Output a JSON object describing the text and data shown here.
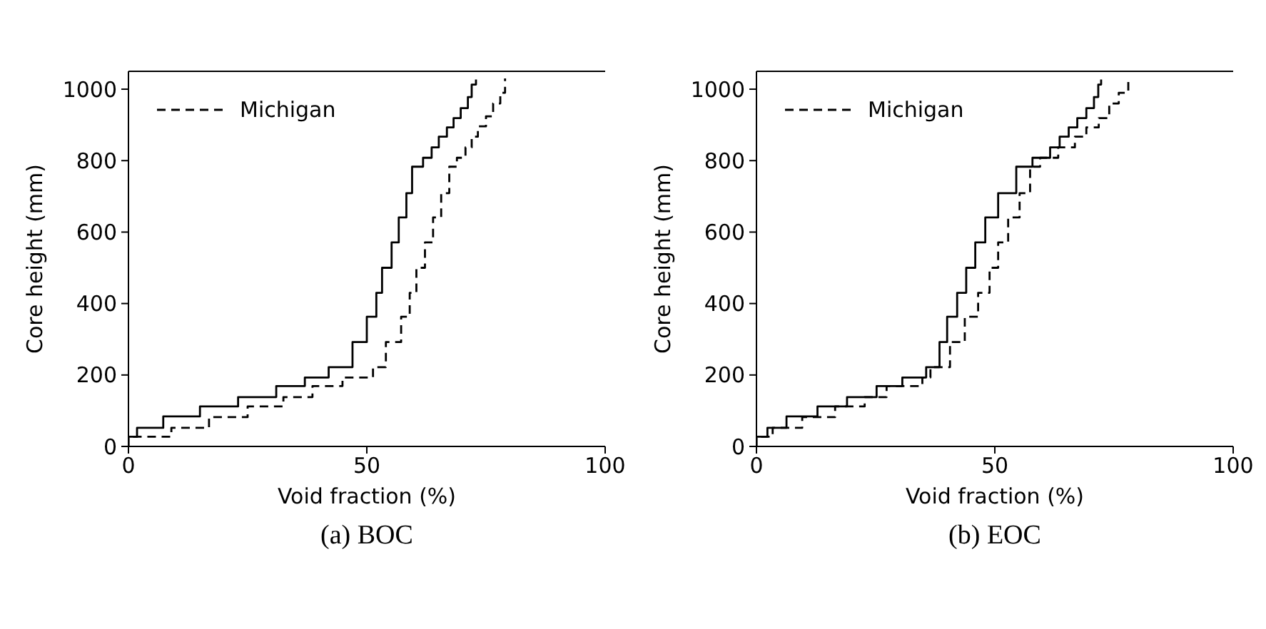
{
  "chart_data": [
    {
      "type": "step",
      "title": "(a) BOC",
      "xlabel": "Void fraction (%)",
      "ylabel": "Core height (mm)",
      "xlim": [
        0,
        100
      ],
      "xticks": [
        0,
        50,
        100
      ],
      "ylim": [
        0,
        1050
      ],
      "yticks": [
        0,
        200,
        400,
        600,
        800,
        1000
      ],
      "legend": "top left",
      "grid": false,
      "series": [
        {
          "color": "#000000",
          "line_style": "solid",
          "x": [
            0,
            0,
            1.8,
            7.3,
            15,
            23,
            31,
            37,
            42,
            47,
            50,
            52,
            53.2,
            55.2,
            56.7,
            58.3,
            59.5,
            61.8,
            63.6,
            65.1,
            66.8,
            68.2,
            69.7,
            71.2,
            72,
            72.9
          ],
          "values": [
            0,
            27,
            52,
            84,
            112,
            138,
            169,
            193,
            222,
            292,
            363,
            430,
            500,
            571,
            641,
            709,
            783,
            808,
            837,
            867,
            893,
            919,
            947,
            978,
            1013,
            1027
          ]
        },
        {
          "name": "Michigan",
          "color": "#000000",
          "line_style": "dashed",
          "x": [
            0,
            0,
            9,
            16.9,
            25,
            32.5,
            38.6,
            44.9,
            51.3,
            54,
            57.2,
            59,
            60.4,
            62.2,
            63.9,
            65.6,
            67.3,
            68.9,
            70.7,
            72,
            73.3,
            75,
            76.5,
            78,
            79
          ],
          "values": [
            0,
            27,
            52,
            82,
            112,
            138,
            169,
            193,
            222,
            292,
            363,
            430,
            500,
            571,
            641,
            709,
            783,
            808,
            837,
            867,
            896,
            924,
            960,
            990,
            1030
          ]
        }
      ]
    },
    {
      "type": "step",
      "title": "(b) EOC",
      "xlabel": "Void fraction (%)",
      "ylabel": "Core height (mm)",
      "xlim": [
        0,
        100
      ],
      "xticks": [
        0,
        50,
        100
      ],
      "ylim": [
        0,
        1050
      ],
      "yticks": [
        0,
        200,
        400,
        600,
        800,
        1000
      ],
      "legend": "top left",
      "grid": false,
      "series": [
        {
          "color": "#000000",
          "line_style": "solid",
          "x": [
            0,
            0,
            2.3,
            6.3,
            12.8,
            19,
            25.2,
            30.6,
            35.6,
            38.4,
            40,
            42.1,
            44,
            45.9,
            48,
            50.7,
            54.5,
            57.9,
            61.6,
            63.6,
            65.5,
            67.3,
            69.2,
            70.8,
            71.7,
            72.3
          ],
          "values": [
            0,
            27,
            52,
            84,
            112,
            138,
            169,
            193,
            222,
            292,
            363,
            430,
            500,
            571,
            641,
            709,
            783,
            808,
            837,
            867,
            893,
            919,
            947,
            978,
            1013,
            1027
          ]
        },
        {
          "name": "Michigan",
          "color": "#000000",
          "line_style": "dashed",
          "x": [
            0,
            0,
            3.4,
            9.6,
            16.5,
            22.7,
            27.3,
            34.8,
            36.5,
            40.6,
            43.7,
            46.5,
            48.9,
            50.7,
            52.8,
            55.2,
            57.4,
            59.5,
            63.3,
            66.8,
            69.2,
            71.8,
            74,
            76,
            78
          ],
          "values": [
            0,
            27,
            52,
            82,
            112,
            138,
            169,
            193,
            222,
            292,
            363,
            430,
            500,
            571,
            641,
            709,
            783,
            808,
            837,
            867,
            893,
            919,
            960,
            990,
            1020
          ]
        }
      ]
    }
  ]
}
